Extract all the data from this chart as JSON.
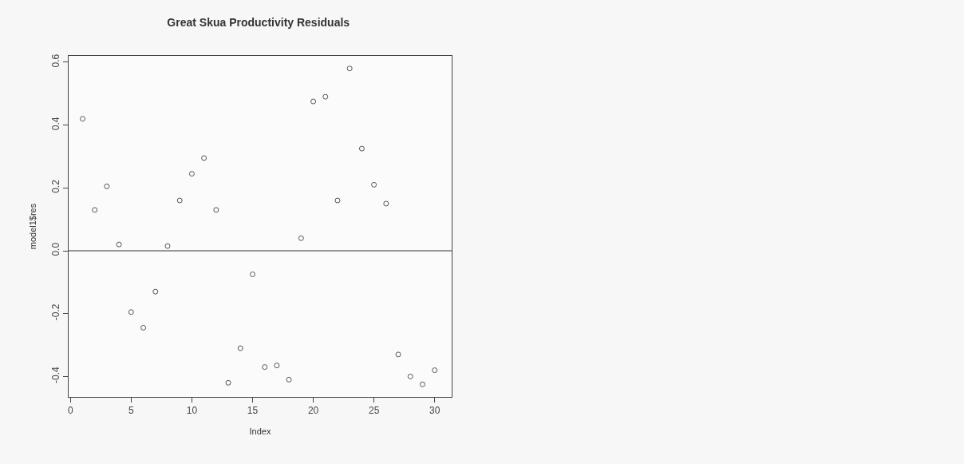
{
  "chart_data": {
    "type": "scatter",
    "title": "Great Skua Productivity Residuals",
    "xlabel": "Index",
    "ylabel": "model1$res",
    "x": [
      1,
      2,
      3,
      4,
      5,
      6,
      7,
      8,
      9,
      10,
      11,
      12,
      13,
      14,
      15,
      16,
      17,
      18,
      19,
      20,
      21,
      22,
      23,
      24,
      25,
      26,
      27,
      28,
      29,
      30
    ],
    "series": [
      {
        "color": "#555555",
        "values": [
          0.42,
          0.13,
          0.205,
          0.02,
          -0.195,
          -0.245,
          -0.13,
          0.015,
          0.16,
          0.245,
          0.295,
          0.13,
          -0.42,
          -0.31,
          -0.075,
          -0.37,
          -0.365,
          -0.41,
          0.04,
          0.475,
          0.49,
          0.16,
          0.58,
          0.325,
          0.21,
          0.15,
          -0.33,
          -0.4,
          -0.425,
          -0.38
        ]
      }
    ],
    "xlim": [
      -0.15,
      31.4
    ],
    "ylim": [
      -0.465,
      0.62
    ],
    "xticks": [
      0,
      5,
      10,
      15,
      20,
      25,
      30
    ],
    "yticks": [
      {
        "value": -0.4,
        "label": "-0.4"
      },
      {
        "value": -0.2,
        "label": "-0.2"
      },
      {
        "value": 0,
        "label": "0.0"
      },
      {
        "value": 0.2,
        "label": "0.2"
      },
      {
        "value": 0.4,
        "label": "0.4"
      },
      {
        "value": 0.6,
        "label": "0.6"
      }
    ],
    "ref_lines": [
      {
        "axis": "y",
        "value": 0,
        "color": "#333333"
      }
    ],
    "marker": "circle"
  }
}
